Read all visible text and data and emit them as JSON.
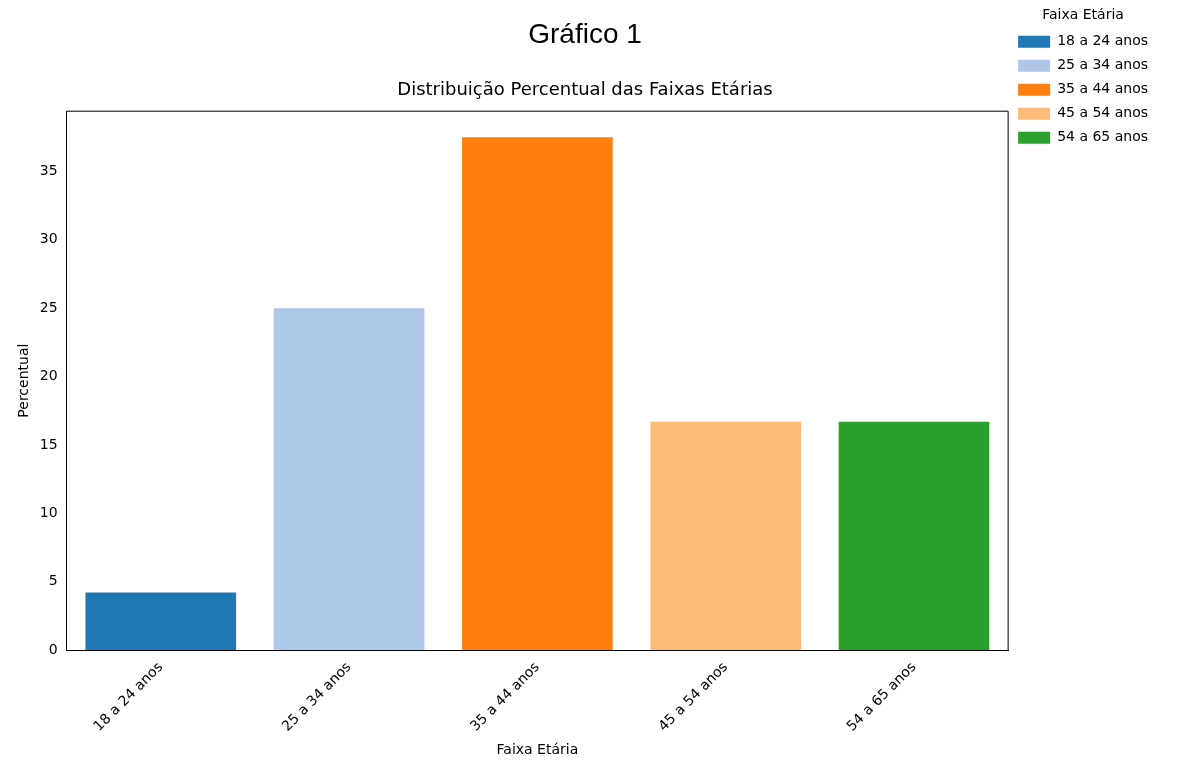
{
  "chart_data": {
    "type": "bar",
    "title": "Gráfico 1",
    "subtitle": "Distribuição Percentual das Faixas Etárias",
    "xlabel": "Faixa Etária",
    "ylabel": "Percentual",
    "legend_title": "Faixa Etária",
    "categories": [
      "18 a 24 anos",
      "25 a 34 anos",
      "35 a 44 anos",
      "45 a 54 anos",
      "54 a 65 anos"
    ],
    "series": [
      {
        "name": "18 a 24 anos",
        "color": "#1f77b4",
        "values": [
          4.2,
          null,
          null,
          null,
          null
        ]
      },
      {
        "name": "25 a 34 anos",
        "color": "#aec7e8",
        "values": [
          null,
          25,
          null,
          null,
          null
        ]
      },
      {
        "name": "35 a 44 anos",
        "color": "#ff7f0e",
        "values": [
          null,
          null,
          37.5,
          null,
          null
        ]
      },
      {
        "name": "45 a 54 anos",
        "color": "#ffbb78",
        "values": [
          null,
          null,
          null,
          16.7,
          null
        ]
      },
      {
        "name": "54 a 65 anos",
        "color": "#2ca02c",
        "values": [
          null,
          null,
          null,
          null,
          16.7
        ]
      }
    ],
    "ylim": [
      0,
      39.4
    ],
    "yticks": [
      0,
      5,
      10,
      15,
      20,
      25,
      30,
      35
    ],
    "grid": false,
    "legend": "top right"
  }
}
